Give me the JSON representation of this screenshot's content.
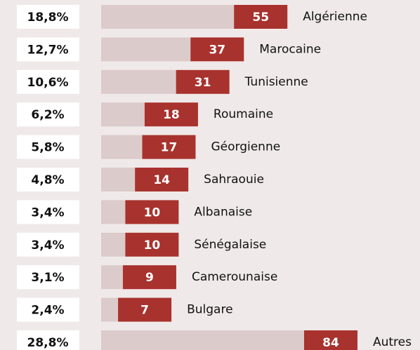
{
  "chart_data": {
    "type": "bar",
    "categories": [
      "Algérienne",
      "Marocaine",
      "Tunisienne",
      "Roumaine",
      "Géorgienne",
      "Sahraouie",
      "Albanaise",
      "Sénégalaise",
      "Camerounaise",
      "Bulgare",
      "Autres"
    ],
    "values": [
      55,
      37,
      31,
      18,
      17,
      14,
      10,
      10,
      9,
      7,
      84
    ],
    "shares": [
      18.8,
      12.7,
      10.6,
      6.2,
      5.8,
      4.8,
      3.4,
      3.4,
      3.1,
      2.4,
      28.8
    ],
    "share_labels": [
      "18,8%",
      "12,7%",
      "10,6%",
      "6,2%",
      "5,8%",
      "4,8%",
      "3,4%",
      "3,4%",
      "3,1%",
      "2,4%",
      "28,8%"
    ],
    "color": "#a8322d",
    "track_color": "#dccbcb"
  }
}
